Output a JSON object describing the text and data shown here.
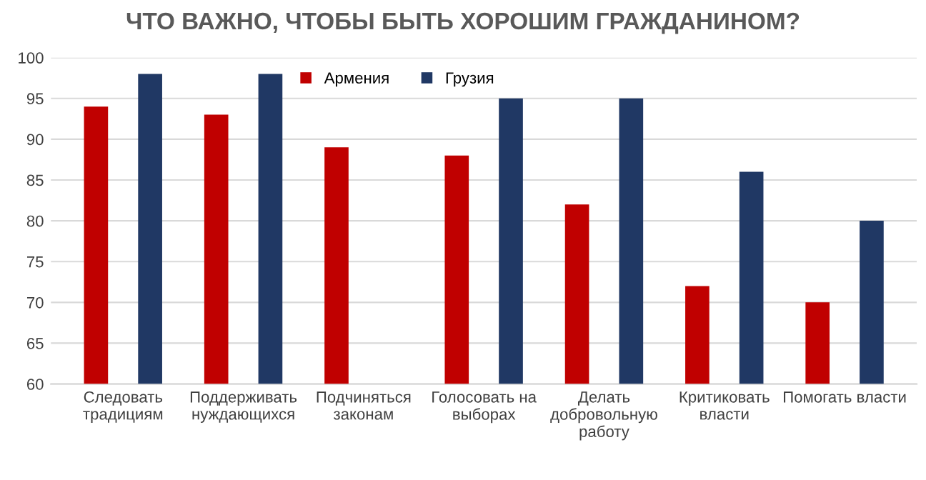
{
  "chart_data": {
    "type": "bar",
    "title": "ЧТО ВАЖНО, ЧТОБЫ БЫТЬ ХОРОШИМ ГРАЖДАНИНОМ?",
    "categories": [
      "Следовать\nтрадициям",
      "Поддерживать\nнуждающихся",
      "Подчиняться\nзаконам",
      "Голосовать на\nвыборах",
      "Делать\nдобровольную\nработу",
      "Критиковать\nвласти",
      "Помогать власти"
    ],
    "series": [
      {
        "name": "Армения",
        "color": "#c00000",
        "values": [
          94,
          93,
          89,
          88,
          82,
          72,
          70
        ]
      },
      {
        "name": "Грузия",
        "color": "#203864",
        "values": [
          98,
          98,
          null,
          95,
          95,
          86,
          80
        ]
      }
    ],
    "ylim": [
      60,
      100
    ],
    "yticks": [
      60,
      65,
      70,
      75,
      80,
      85,
      90,
      95,
      100
    ],
    "grid": "y",
    "legend": "top"
  }
}
